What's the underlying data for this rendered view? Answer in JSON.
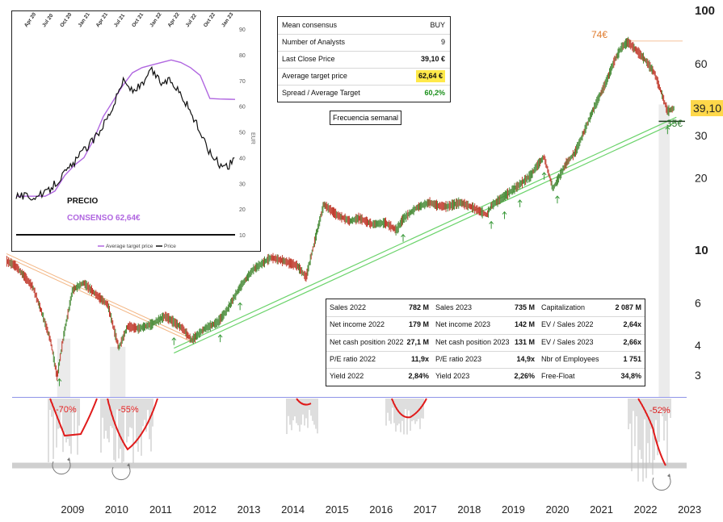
{
  "chart_data": [
    {
      "type": "line",
      "chart_role": "price history, weekly, log scale",
      "x_axis_labels": [
        "2009",
        "2010",
        "2011",
        "2012",
        "2013",
        "2014",
        "2015",
        "2016",
        "2017",
        "2018",
        "2019",
        "2020",
        "2021",
        "2022",
        "2023"
      ],
      "y_scale": "log",
      "ylim": [
        2.6,
        100
      ],
      "y_ticks": [
        3,
        4,
        6,
        10,
        20,
        30,
        60,
        100
      ],
      "last_price_label": "39,10",
      "annotations": {
        "high": "74€",
        "support": "35€",
        "drawdowns": [
          "-70%",
          "-55%",
          "-52%"
        ]
      },
      "x": [
        2008.0,
        2008.2,
        2008.4,
        2008.6,
        2008.8,
        2009.0,
        2009.15,
        2009.3,
        2009.5,
        2009.75,
        2010.0,
        2010.3,
        2010.55,
        2010.75,
        2011.0,
        2011.3,
        2011.6,
        2011.8,
        2012.0,
        2012.2,
        2012.5,
        2012.8,
        2013.0,
        2013.3,
        2013.6,
        2014.0,
        2014.3,
        2014.6,
        2014.8,
        2015.0,
        2015.2,
        2015.5,
        2015.8,
        2016.0,
        2016.3,
        2016.6,
        2016.85,
        2017.0,
        2017.3,
        2017.6,
        2017.8,
        2018.0,
        2018.3,
        2018.6,
        2018.9,
        2019.0,
        2019.3,
        2019.6,
        2019.9,
        2020.0,
        2020.2,
        2020.4,
        2020.7,
        2020.9,
        2021.0,
        2021.3,
        2021.6,
        2021.8,
        2021.95,
        2022.1,
        2022.3,
        2022.5,
        2022.7,
        2022.85,
        2023.0,
        2023.15
      ],
      "values": [
        9.0,
        8.6,
        7.8,
        7.0,
        5.5,
        4.2,
        2.95,
        4.4,
        6.8,
        7.3,
        6.6,
        5.9,
        3.9,
        4.8,
        4.7,
        4.9,
        5.3,
        5.0,
        4.7,
        4.2,
        4.7,
        5.0,
        5.6,
        7.0,
        8.3,
        9.3,
        9.0,
        8.6,
        7.7,
        11.0,
        15.5,
        14.0,
        13.2,
        13.6,
        12.8,
        13.0,
        12.1,
        13.5,
        15.0,
        15.8,
        15.3,
        15.2,
        15.8,
        15.0,
        14.0,
        15.3,
        16.8,
        18.5,
        20.5,
        22.0,
        24.5,
        18.0,
        23.0,
        25.5,
        28.0,
        38.0,
        50.0,
        62.0,
        70.0,
        74.0,
        68.0,
        62.0,
        55.0,
        46.0,
        38.0,
        39.1
      ],
      "support_line": {
        "x": [
          2011.8,
          2023.2
        ],
        "values": [
          3.8,
          35.0
        ]
      },
      "resistance_line": {
        "x": [
          2008.0,
          2012.2
        ],
        "values": [
          9.5,
          4.2
        ]
      },
      "average_target": {
        "value": 62.64
      }
    },
    {
      "type": "line",
      "chart_role": "inset: price vs average target price",
      "x_labels": [
        "Apr 20",
        "Jul 20",
        "Oct 20",
        "Jan 21",
        "Apr 21",
        "Jul 21",
        "Oct 21",
        "Jan 22",
        "Apr 22",
        "Jul 22",
        "Oct 22",
        "Jan 23"
      ],
      "ylabel": "EUR",
      "ylim": [
        10,
        90
      ],
      "y_ticks": [
        10,
        20,
        30,
        40,
        50,
        60,
        70,
        80,
        90
      ],
      "labels": {
        "price": "PRECIO",
        "consensus": "CONSENSO 62,64€"
      },
      "legend": [
        "Average target price",
        "Price"
      ],
      "x": [
        0,
        0.5,
        1,
        1.5,
        2,
        2.5,
        3,
        3.5,
        4,
        4.5,
        5,
        5.5,
        6,
        6.5,
        7,
        7.5,
        8,
        8.5,
        9,
        9.5,
        10,
        10.5,
        11,
        11.3
      ],
      "price": [
        25.5,
        25.0,
        24.8,
        26.0,
        30.0,
        34.0,
        38.0,
        43.0,
        47.0,
        53.0,
        60.0,
        70.0,
        66.0,
        68.0,
        74.0,
        69.0,
        70.0,
        65.0,
        58.0,
        50.0,
        42.0,
        37.5,
        37.0,
        40.0
      ],
      "average_target": [
        25.0,
        25.0,
        25.0,
        25.0,
        27.0,
        33.0,
        37.0,
        40.0,
        47.0,
        56.0,
        62.0,
        68.0,
        73.0,
        75.0,
        76.0,
        77.0,
        78.0,
        77.0,
        75.0,
        72.0,
        63.0,
        62.8,
        62.7,
        62.64
      ]
    },
    {
      "type": "area",
      "chart_role": "drawdown from prior high",
      "labels": [
        "-70%",
        "-55%",
        "-52%"
      ]
    }
  ],
  "consensus": {
    "rows": [
      {
        "label": "Mean consensus",
        "value": "BUY"
      },
      {
        "label": "Number of Analysts",
        "value": "9"
      },
      {
        "label": "Last Close Price",
        "value": "39,10 €"
      },
      {
        "label": "Average target price",
        "value": "62,64 €"
      },
      {
        "label": "Spread / Average Target",
        "value": "60,2%"
      }
    ]
  },
  "frequency_label": "Frecuencia semanal",
  "fundamentals": {
    "rows": [
      [
        {
          "label": "Sales 2022",
          "value": "782 M"
        },
        {
          "label": "Sales 2023",
          "value": "735 M"
        },
        {
          "label": "Capitalization",
          "value": "2 087 M"
        }
      ],
      [
        {
          "label": "Net income 2022",
          "value": "179 M"
        },
        {
          "label": "Net income 2023",
          "value": "142 M"
        },
        {
          "label": "EV / Sales 2022",
          "value": "2,64x"
        }
      ],
      [
        {
          "label": "Net cash position 2022",
          "value": "27,1 M"
        },
        {
          "label": "Net cash position 2023",
          "value": "131 M"
        },
        {
          "label": "EV / Sales 2023",
          "value": "2,66x"
        }
      ],
      [
        {
          "label": "P/E ratio 2022",
          "value": "11,9x"
        },
        {
          "label": "P/E ratio 2023",
          "value": "14,9x"
        },
        {
          "label": "Nbr of Employees",
          "value": "1 751"
        }
      ],
      [
        {
          "label": "Yield 2022",
          "value": "2,84%"
        },
        {
          "label": "Yield 2023",
          "value": "2,26%"
        },
        {
          "label": "Free-Float",
          "value": "34,8%"
        }
      ]
    ]
  },
  "colors": {
    "up_candle": "#4a8c3a",
    "down_candle": "#c0392b",
    "support": "#6bd36b",
    "resistance": "#f3b684",
    "drawdown_curve": "#e01b1b",
    "baseline": "#8f95e8",
    "target_line": "#b066e0",
    "price_highlight": "#ffd84a",
    "high_label": "#e07c2e",
    "support_label": "#2f7a2f"
  }
}
